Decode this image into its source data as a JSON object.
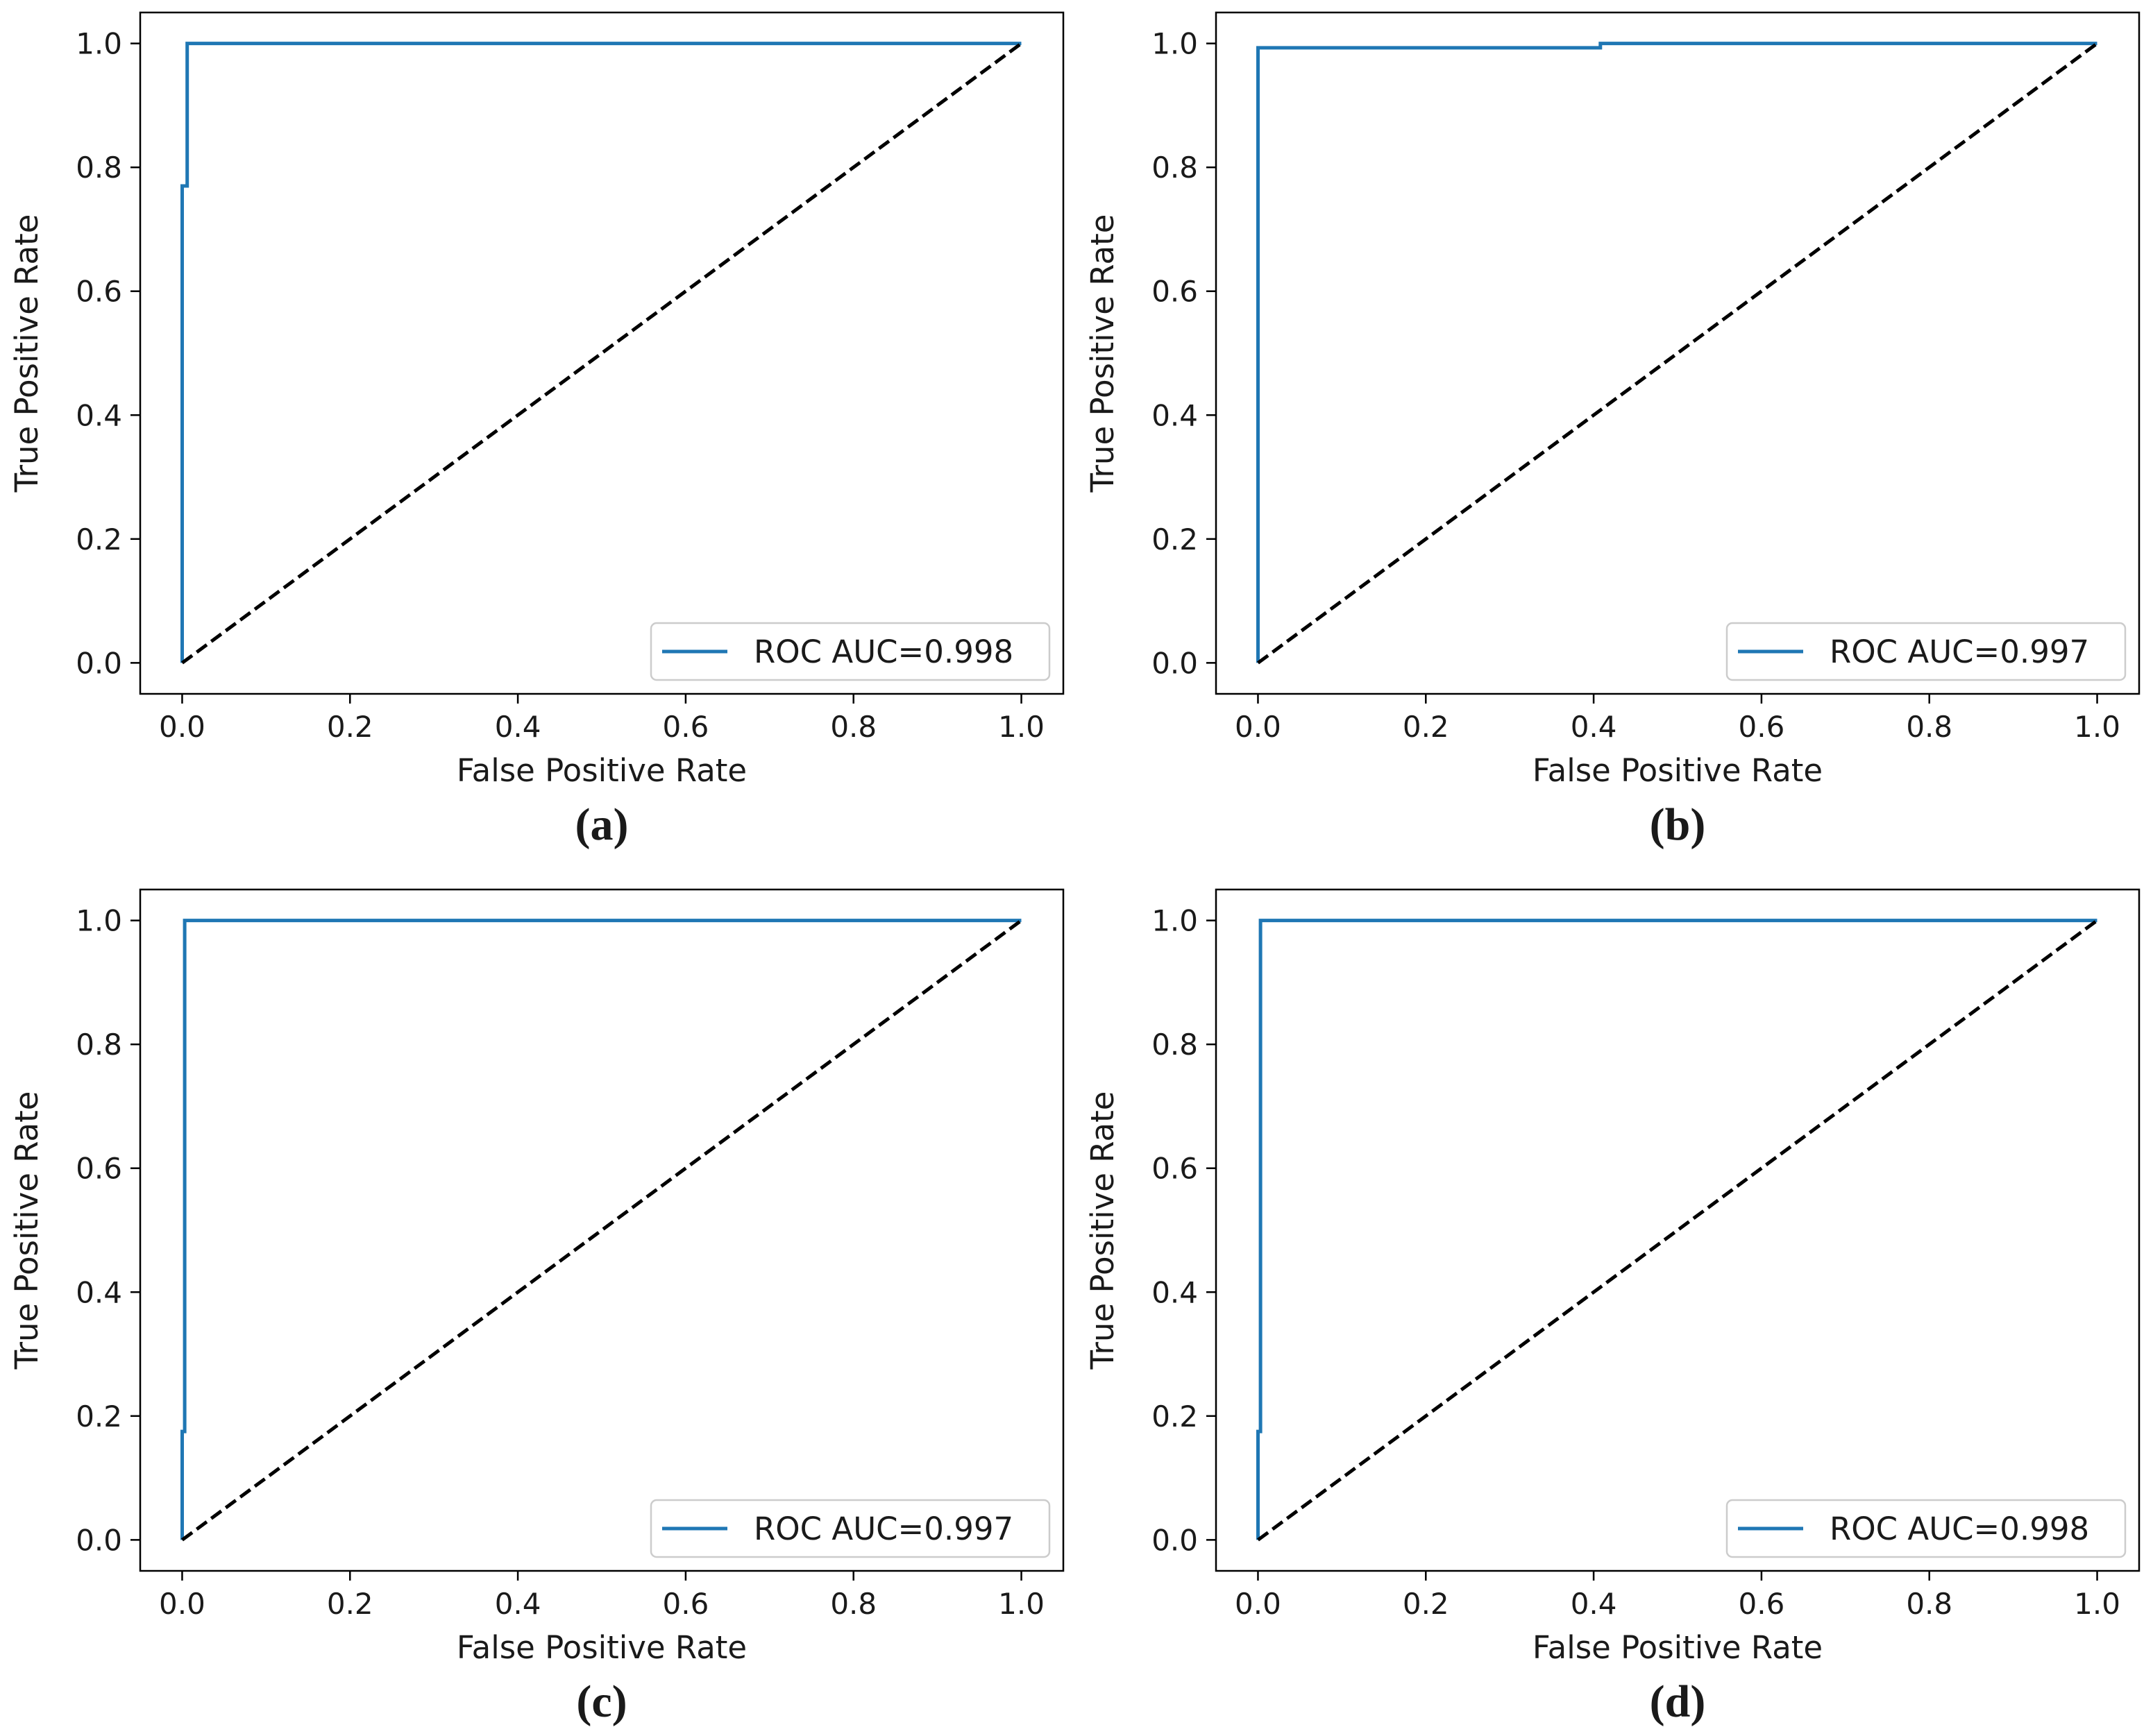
{
  "figure": {
    "background": "#ffffff"
  },
  "chart_data": [
    {
      "type": "line",
      "panel_label": "(a)",
      "xlabel": "False Positive Rate",
      "ylabel": "True Positive Rate",
      "xlim": [
        -0.05,
        1.05
      ],
      "ylim": [
        -0.05,
        1.05
      ],
      "xticks": [
        "0.0",
        "0.2",
        "0.4",
        "0.6",
        "0.8",
        "1.0"
      ],
      "yticks": [
        "0.0",
        "0.2",
        "0.4",
        "0.6",
        "0.8",
        "1.0"
      ],
      "grid": false,
      "legend": {
        "position": "lower-right",
        "entries": [
          "ROC AUC=0.998"
        ]
      },
      "series": [
        {
          "name": "ROC AUC=0.998",
          "color": "#1f77b4",
          "style": "solid",
          "x": [
            0,
            0,
            0.006,
            0.006,
            1.0
          ],
          "y": [
            0,
            0.77,
            0.77,
            1.0,
            1.0
          ]
        },
        {
          "name": "chance",
          "color": "#000000",
          "style": "dashed",
          "x": [
            0,
            1
          ],
          "y": [
            0,
            1
          ]
        }
      ]
    },
    {
      "type": "line",
      "panel_label": "(b)",
      "xlabel": "False Positive Rate",
      "ylabel": "True Positive Rate",
      "xlim": [
        -0.05,
        1.05
      ],
      "ylim": [
        -0.05,
        1.05
      ],
      "xticks": [
        "0.0",
        "0.2",
        "0.4",
        "0.6",
        "0.8",
        "1.0"
      ],
      "yticks": [
        "0.0",
        "0.2",
        "0.4",
        "0.6",
        "0.8",
        "1.0"
      ],
      "grid": false,
      "legend": {
        "position": "lower-right",
        "entries": [
          "ROC AUC=0.997"
        ]
      },
      "series": [
        {
          "name": "ROC AUC=0.997",
          "color": "#1f77b4",
          "style": "solid",
          "x": [
            0,
            0,
            0.408,
            0.408,
            1.0
          ],
          "y": [
            0,
            0.993,
            0.993,
            1.0,
            1.0
          ]
        },
        {
          "name": "chance",
          "color": "#000000",
          "style": "dashed",
          "x": [
            0,
            1
          ],
          "y": [
            0,
            1
          ]
        }
      ]
    },
    {
      "type": "line",
      "panel_label": "(c)",
      "xlabel": "False Positive Rate",
      "ylabel": "True Positive Rate",
      "xlim": [
        -0.05,
        1.05
      ],
      "ylim": [
        -0.05,
        1.05
      ],
      "xticks": [
        "0.0",
        "0.2",
        "0.4",
        "0.6",
        "0.8",
        "1.0"
      ],
      "yticks": [
        "0.0",
        "0.2",
        "0.4",
        "0.6",
        "0.8",
        "1.0"
      ],
      "grid": false,
      "legend": {
        "position": "lower-right",
        "entries": [
          "ROC AUC=0.997"
        ]
      },
      "series": [
        {
          "name": "ROC AUC=0.997",
          "color": "#1f77b4",
          "style": "solid",
          "x": [
            0,
            0,
            0.003,
            0.003,
            1.0
          ],
          "y": [
            0,
            0.175,
            0.175,
            1.0,
            1.0
          ]
        },
        {
          "name": "chance",
          "color": "#000000",
          "style": "dashed",
          "x": [
            0,
            1
          ],
          "y": [
            0,
            1
          ]
        }
      ]
    },
    {
      "type": "line",
      "panel_label": "(d)",
      "xlabel": "False Positive Rate",
      "ylabel": "True Positive Rate",
      "xlim": [
        -0.05,
        1.05
      ],
      "ylim": [
        -0.05,
        1.05
      ],
      "xticks": [
        "0.0",
        "0.2",
        "0.4",
        "0.6",
        "0.8",
        "1.0"
      ],
      "yticks": [
        "0.0",
        "0.2",
        "0.4",
        "0.6",
        "0.8",
        "1.0"
      ],
      "grid": false,
      "legend": {
        "position": "lower-right",
        "entries": [
          "ROC AUC=0.998"
        ]
      },
      "series": [
        {
          "name": "ROC AUC=0.998",
          "color": "#1f77b4",
          "style": "solid",
          "x": [
            0,
            0,
            0.003,
            0.003,
            1.0
          ],
          "y": [
            0,
            0.175,
            0.175,
            1.0,
            1.0
          ]
        },
        {
          "name": "chance",
          "color": "#000000",
          "style": "dashed",
          "x": [
            0,
            1
          ],
          "y": [
            0,
            1
          ]
        }
      ]
    }
  ]
}
